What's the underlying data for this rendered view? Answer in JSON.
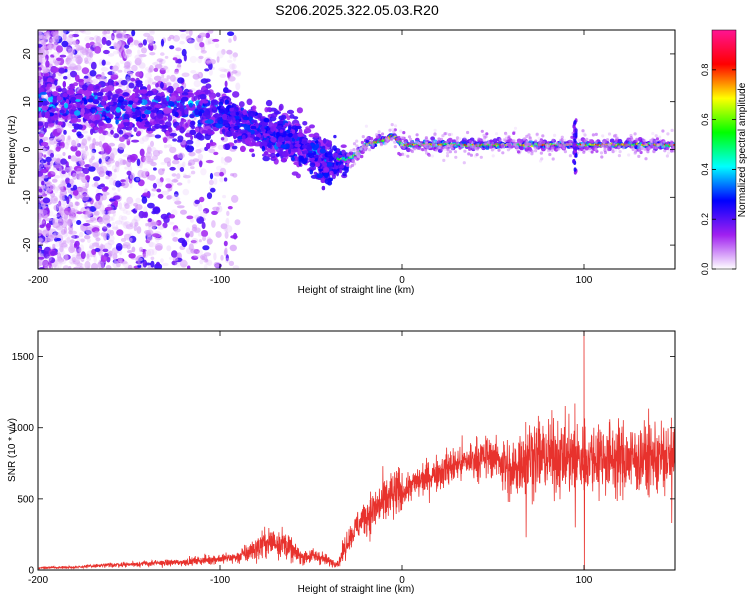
{
  "title": "S206.2025.322.05.03.R20",
  "chart_data": [
    {
      "type": "heatmap",
      "xlabel": "Height of straight line (km)",
      "ylabel": "Frequency (Hz)",
      "xlim": [
        -200,
        150
      ],
      "ylim": [
        -25,
        25
      ],
      "xticks": [
        -200,
        -100,
        0,
        100
      ],
      "yticks": [
        20,
        10,
        0,
        -10,
        -20
      ],
      "colorbar": {
        "label": "Normalized spectral amplitude",
        "range": [
          0.0,
          0.96
        ],
        "ticks": [
          0.0,
          0.2,
          0.4,
          0.6,
          0.8
        ],
        "tick_labels": [
          "0.0",
          "0.2",
          "0.4",
          "0.6",
          "0.8"
        ],
        "colors": [
          "#ffffff",
          "#a020f0",
          "#0000ff",
          "#00ffff",
          "#00ff00",
          "#ffff00",
          "#ff0000",
          "#ff1493"
        ]
      },
      "ridge": {
        "x": [
          -200,
          -150,
          -140,
          -120,
          -100,
          -90,
          -80,
          -70,
          -60,
          -50,
          -45,
          -40,
          -35,
          -30,
          -25,
          -20,
          -15,
          -10,
          -5,
          0,
          10,
          20,
          40,
          60,
          80,
          100,
          120,
          150
        ],
        "y": [
          10,
          8,
          9,
          8,
          7,
          6,
          4.5,
          3,
          2,
          0,
          -2,
          -3.5,
          -2,
          -2,
          -1,
          1,
          1.5,
          2,
          3,
          1,
          1,
          1,
          1,
          1,
          1,
          1,
          1,
          1
        ]
      }
    },
    {
      "type": "line",
      "xlabel": "Height of straight line (km)",
      "ylabel": "SNR (10 * v/v)",
      "xlim": [
        -200,
        150
      ],
      "ylim": [
        0,
        1680
      ],
      "xticks": [
        -200,
        -100,
        0,
        100
      ],
      "yticks": [
        0,
        500,
        1000,
        1500
      ],
      "color": "#e8322d",
      "envelope": {
        "x": [
          -200,
          -180,
          -160,
          -140,
          -120,
          -100,
          -90,
          -80,
          -75,
          -70,
          -65,
          -60,
          -55,
          -50,
          -45,
          -40,
          -35,
          -30,
          -25,
          -20,
          -10,
          0,
          10,
          20,
          30,
          40,
          50,
          55,
          60,
          65,
          70,
          80,
          90,
          95,
          100,
          105,
          110,
          120,
          130,
          140,
          150
        ],
        "y": [
          15,
          20,
          35,
          45,
          55,
          80,
          90,
          150,
          190,
          200,
          190,
          130,
          90,
          100,
          90,
          60,
          45,
          200,
          300,
          380,
          480,
          550,
          630,
          690,
          740,
          780,
          800,
          760,
          660,
          780,
          800,
          800,
          790,
          770,
          790,
          790,
          800,
          780,
          780,
          790,
          780
        ]
      },
      "spikes": [
        {
          "x": 100,
          "max": 1680,
          "min": 0
        },
        {
          "x": 68,
          "max": 1040,
          "min": 230
        },
        {
          "x": 95,
          "max": 1170,
          "min": 300
        },
        {
          "x": 148,
          "max": 1070,
          "min": 330
        }
      ]
    }
  ]
}
